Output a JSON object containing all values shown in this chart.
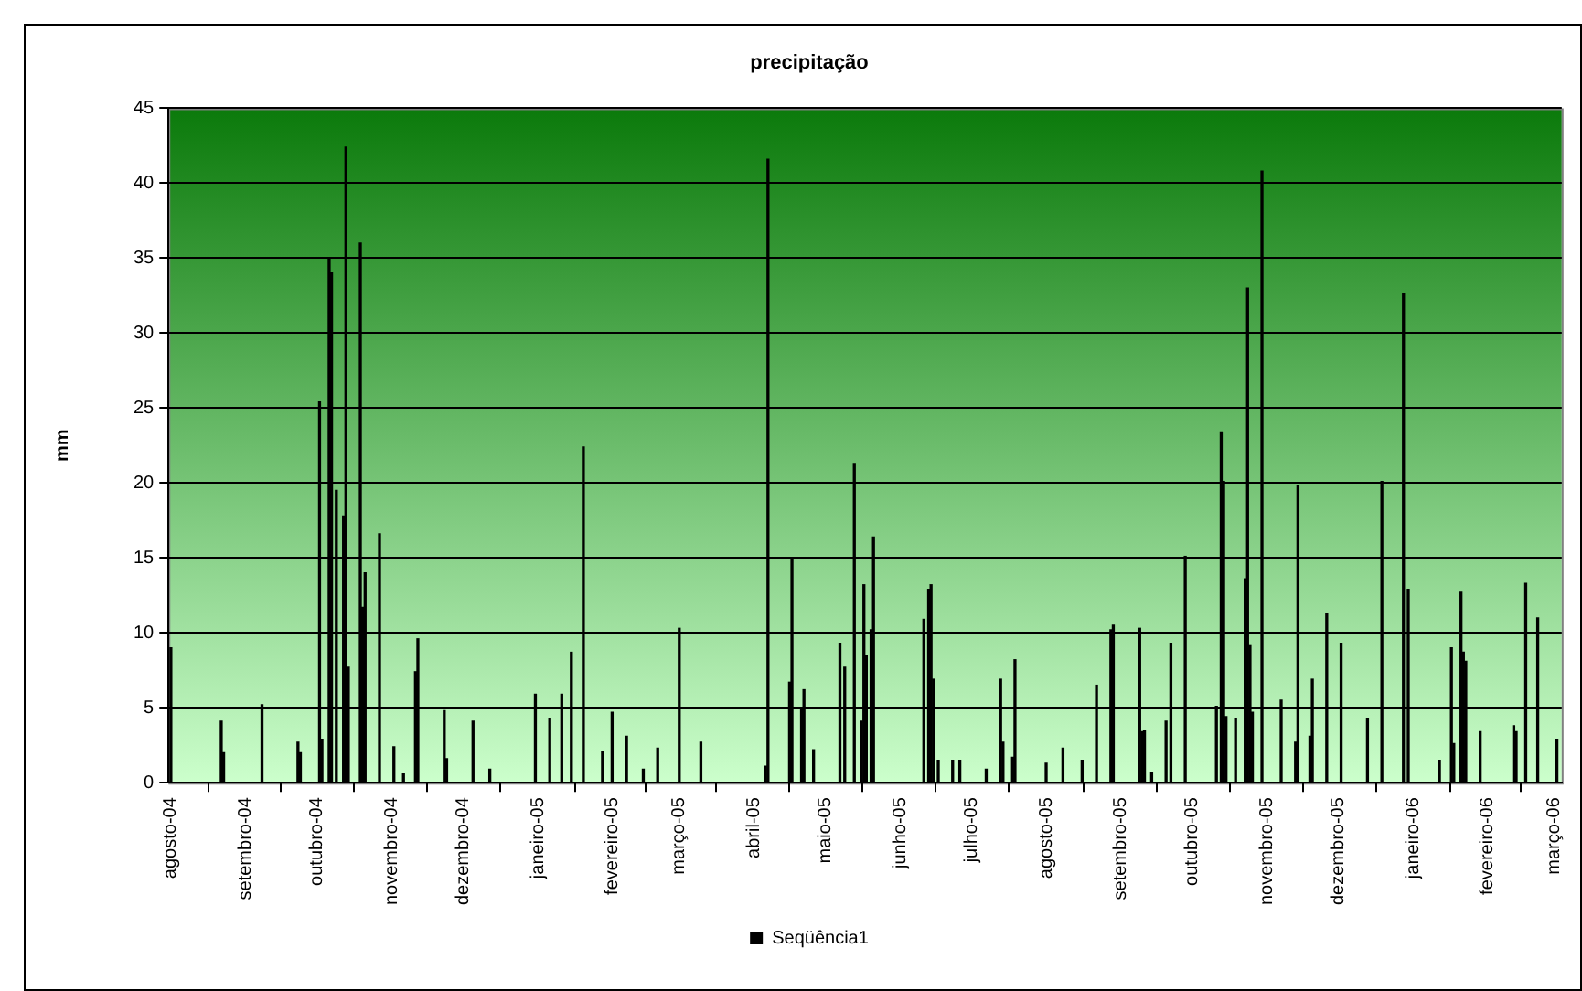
{
  "chart_data": {
    "type": "bar",
    "title": "precipitação",
    "ylabel": "mm",
    "x": [
      "2004-08-01",
      "2004-08-22",
      "2004-08-23",
      "2004-09-08",
      "2004-09-23",
      "2004-09-24",
      "2004-10-02",
      "2004-10-03",
      "2004-10-06",
      "2004-10-07",
      "2004-10-09",
      "2004-10-12",
      "2004-10-13",
      "2004-10-14",
      "2004-10-19",
      "2004-10-20",
      "2004-10-21",
      "2004-10-27",
      "2004-11-02",
      "2004-11-06",
      "2004-11-11",
      "2004-11-12",
      "2004-11-23",
      "2004-11-24",
      "2004-12-05",
      "2004-12-12",
      "2004-12-31",
      "2005-01-06",
      "2005-01-11",
      "2005-01-15",
      "2005-01-20",
      "2005-01-28",
      "2005-02-01",
      "2005-02-07",
      "2005-02-14",
      "2005-02-20",
      "2005-03-01",
      "2005-03-10",
      "2005-04-06",
      "2005-04-07",
      "2005-04-16",
      "2005-04-17",
      "2005-04-21",
      "2005-04-22",
      "2005-04-26",
      "2005-05-07",
      "2005-05-09",
      "2005-05-13",
      "2005-05-16",
      "2005-05-17",
      "2005-05-18",
      "2005-05-20",
      "2005-05-21",
      "2005-06-11",
      "2005-06-13",
      "2005-06-14",
      "2005-06-15",
      "2005-06-17",
      "2005-06-23",
      "2005-06-26",
      "2005-07-07",
      "2005-07-13",
      "2005-07-14",
      "2005-07-18",
      "2005-07-19",
      "2005-08-01",
      "2005-08-08",
      "2005-08-16",
      "2005-08-22",
      "2005-08-28",
      "2005-08-29",
      "2005-09-09",
      "2005-09-10",
      "2005-09-11",
      "2005-09-14",
      "2005-09-20",
      "2005-09-22",
      "2005-09-28",
      "2005-10-11",
      "2005-10-13",
      "2005-10-14",
      "2005-10-15",
      "2005-10-19",
      "2005-10-23",
      "2005-10-24",
      "2005-10-25",
      "2005-10-26",
      "2005-10-30",
      "2005-11-07",
      "2005-11-13",
      "2005-11-14",
      "2005-11-19",
      "2005-11-20",
      "2005-11-26",
      "2005-12-02",
      "2005-12-13",
      "2005-12-19",
      "2005-12-28",
      "2005-12-30",
      "2006-01-12",
      "2006-01-17",
      "2006-01-18",
      "2006-01-21",
      "2006-01-22",
      "2006-01-23",
      "2006-01-29",
      "2006-02-12",
      "2006-02-13",
      "2006-02-17",
      "2006-02-22",
      "2006-03-02"
    ],
    "series": [
      {
        "name": "Seqüência1",
        "color": "#000000",
        "values": [
          9.0,
          4.1,
          2.0,
          5.2,
          2.7,
          2.0,
          25.4,
          2.9,
          35.0,
          34.0,
          19.5,
          17.8,
          42.4,
          7.7,
          36.0,
          11.7,
          14.0,
          16.6,
          2.4,
          0.6,
          7.4,
          9.6,
          4.8,
          1.6,
          4.1,
          0.9,
          5.9,
          4.3,
          5.9,
          8.7,
          22.4,
          2.1,
          4.7,
          3.1,
          0.9,
          2.3,
          10.3,
          2.7,
          1.1,
          41.6,
          6.7,
          15.0,
          4.9,
          6.2,
          2.2,
          9.3,
          7.7,
          21.3,
          4.1,
          13.2,
          8.5,
          10.2,
          16.4,
          10.9,
          12.9,
          13.2,
          6.9,
          1.5,
          1.5,
          1.5,
          0.9,
          6.9,
          2.7,
          1.7,
          8.2,
          1.3,
          2.3,
          1.5,
          6.5,
          10.2,
          10.5,
          10.3,
          3.4,
          3.5,
          0.7,
          4.1,
          9.3,
          15.1,
          5.1,
          23.4,
          20.1,
          4.4,
          4.3,
          13.6,
          33.0,
          9.2,
          4.7,
          40.8,
          5.5,
          2.7,
          19.8,
          3.1,
          6.9,
          11.3,
          9.3,
          4.3,
          20.1,
          32.6,
          12.9,
          1.5,
          9.0,
          2.6,
          12.7,
          8.7,
          8.1,
          3.4,
          3.8,
          3.4,
          13.3,
          11.0,
          2.9
        ]
      }
    ],
    "xlim": [
      "2004-07-31",
      "2006-03-04"
    ],
    "xticks": [
      {
        "value": "2004-08-01",
        "label": "agosto-04"
      },
      {
        "value": "2004-09-01",
        "label": "setembro-04"
      },
      {
        "value": "2004-10-01",
        "label": "outubro-04"
      },
      {
        "value": "2004-11-01",
        "label": "novembro-04"
      },
      {
        "value": "2004-12-01",
        "label": "dezembro-04"
      },
      {
        "value": "2005-01-01",
        "label": "janeiro-05"
      },
      {
        "value": "2005-02-01",
        "label": "fevereiro-05"
      },
      {
        "value": "2005-03-01",
        "label": "março-05"
      },
      {
        "value": "2005-04-01",
        "label": "abril-05"
      },
      {
        "value": "2005-05-01",
        "label": "maio-05"
      },
      {
        "value": "2005-06-01",
        "label": "junho-05"
      },
      {
        "value": "2005-07-01",
        "label": "julho-05"
      },
      {
        "value": "2005-08-01",
        "label": "agosto-05"
      },
      {
        "value": "2005-09-01",
        "label": "setembro-05"
      },
      {
        "value": "2005-10-01",
        "label": "outubro-05"
      },
      {
        "value": "2005-11-01",
        "label": "novembro-05"
      },
      {
        "value": "2005-12-01",
        "label": "dezembro-05"
      },
      {
        "value": "2006-01-01",
        "label": "janeiro-06"
      },
      {
        "value": "2006-02-01",
        "label": "fevereiro-06"
      },
      {
        "value": "2006-03-01",
        "label": "março-06"
      }
    ],
    "ylim": [
      0,
      45
    ],
    "yticks": [
      0,
      5,
      10,
      15,
      20,
      25,
      30,
      35,
      40,
      45
    ],
    "grid": "y",
    "legend": "bottom"
  }
}
